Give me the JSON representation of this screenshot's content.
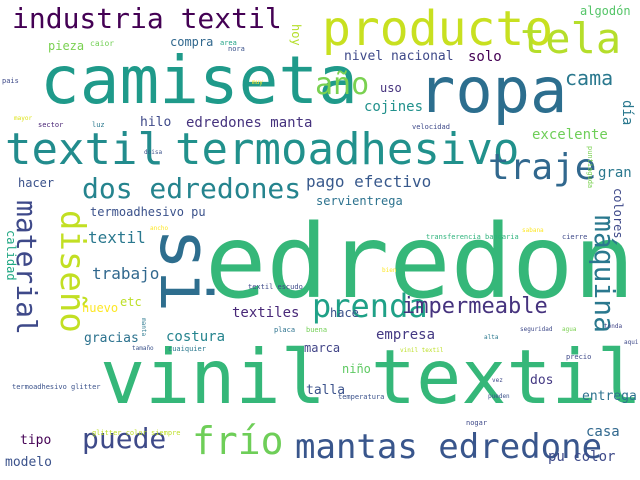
{
  "word_cloud": {
    "words": [
      {
        "text": "edredone",
        "color": "#35b779"
      },
      {
        "text": "vinil textil",
        "color": "#35b779"
      },
      {
        "text": "camiseta",
        "color": "#1f9a8a"
      },
      {
        "text": "ropa",
        "color": "#2c6e8e"
      },
      {
        "text": "producto",
        "color": "#c8e020"
      },
      {
        "text": "si",
        "color": "#2e6e8e"
      },
      {
        "text": "termoadhesivo",
        "color": "#21918c"
      },
      {
        "text": "textil",
        "color": "#228c8d"
      },
      {
        "text": "tela",
        "color": "#b5de2b"
      },
      {
        "text": "industria textil",
        "color": "#440154"
      },
      {
        "text": "mantas edredone",
        "color": "#39568c"
      },
      {
        "text": "dos edredones",
        "color": "#25848e"
      },
      {
        "text": "traje",
        "color": "#31688e"
      },
      {
        "text": "diseño",
        "color": "#c2df23"
      },
      {
        "text": "frío",
        "color": "#6ece58"
      },
      {
        "text": "prenda",
        "color": "#1fa187"
      },
      {
        "text": "puede",
        "color": "#3e4a89"
      },
      {
        "text": "material",
        "color": "#3e4989"
      },
      {
        "text": "máquina",
        "color": "#2a788e"
      },
      {
        "text": "año",
        "color": "#7ad151"
      },
      {
        "text": "impermeable",
        "color": "#46337e"
      },
      {
        "text": "cama",
        "color": "#2a788e"
      },
      {
        "text": "pago efectivo",
        "color": "#38598c"
      },
      {
        "text": "edredones manta",
        "color": "#46337e"
      },
      {
        "text": "termoadhesivo pu",
        "color": "#3b528b"
      },
      {
        "text": "textil",
        "color": "#2a788e"
      },
      {
        "text": "trabajo",
        "color": "#31688e"
      },
      {
        "text": "hacer",
        "color": "#3b528b"
      },
      {
        "text": "hilo",
        "color": "#3e4989"
      },
      {
        "text": "nivel nacional",
        "color": "#3e4989"
      },
      {
        "text": "solo",
        "color": "#440154"
      },
      {
        "text": "uso",
        "color": "#46337e"
      },
      {
        "text": "cojines",
        "color": "#21918c"
      },
      {
        "text": "excelente",
        "color": "#6ece58"
      },
      {
        "text": "gran",
        "color": "#2a788e"
      },
      {
        "text": "servientrega",
        "color": "#2c728e"
      },
      {
        "text": "día",
        "color": "#2a788e"
      },
      {
        "text": "colores",
        "color": "#3e4989"
      },
      {
        "text": "calidad",
        "color": "#22a884"
      },
      {
        "text": "textiles",
        "color": "#482878"
      },
      {
        "text": "empresa",
        "color": "#443983"
      },
      {
        "text": "costura",
        "color": "#25848e"
      },
      {
        "text": "gracias",
        "color": "#2c728e"
      },
      {
        "text": "nuevo",
        "color": "#fde725"
      },
      {
        "text": "etc",
        "color": "#bddf26"
      },
      {
        "text": "hace",
        "color": "#3b528b"
      },
      {
        "text": "marca",
        "color": "#414487"
      },
      {
        "text": "niño",
        "color": "#5ec962"
      },
      {
        "text": "talla",
        "color": "#3b528b"
      },
      {
        "text": "dos",
        "color": "#443983"
      },
      {
        "text": "entrega",
        "color": "#2c728e"
      },
      {
        "text": "casa",
        "color": "#31688e"
      },
      {
        "text": "pu color",
        "color": "#3e4a89"
      },
      {
        "text": "tipo",
        "color": "#440154"
      },
      {
        "text": "modelo",
        "color": "#3b528b"
      },
      {
        "text": "compra",
        "color": "#31688e"
      },
      {
        "text": "hoy",
        "color": "#b5de2b"
      },
      {
        "text": "pieza",
        "color": "#7ad151"
      },
      {
        "text": "algodón",
        "color": "#54c568"
      },
      {
        "text": "caior",
        "color": "#73d056"
      },
      {
        "text": "area",
        "color": "#20a386"
      },
      {
        "text": "nora",
        "color": "#3b528b"
      },
      {
        "text": "pais",
        "color": "#3e4a89"
      },
      {
        "text": "sector",
        "color": "#482475"
      },
      {
        "text": "mayor",
        "color": "#dde318"
      },
      {
        "text": "luz",
        "color": "#2a788e"
      },
      {
        "text": "doisa",
        "color": "#3b528b"
      },
      {
        "text": "velocidad",
        "color": "#3e4989"
      },
      {
        "text": "sabana",
        "color": "#fde725"
      },
      {
        "text": "transferencia bancaria",
        "color": "#2eb37c"
      },
      {
        "text": "cierre",
        "color": "#3e4989"
      },
      {
        "text": "textil escudo",
        "color": "#3e4a89"
      },
      {
        "text": "bien",
        "color": "#fde725"
      },
      {
        "text": "placa",
        "color": "#2c728e"
      },
      {
        "text": "buena",
        "color": "#73d056"
      },
      {
        "text": "tamaño",
        "color": "#3b528b"
      },
      {
        "text": "cuaiquier",
        "color": "#2a788e"
      },
      {
        "text": "termoadhesivo glitter",
        "color": "#3b528b"
      },
      {
        "text": "glitter color siempre",
        "color": "#bddf26"
      },
      {
        "text": "temperatura",
        "color": "#3b528b"
      },
      {
        "text": "nogar",
        "color": "#3e4989"
      },
      {
        "text": "pueden",
        "color": "#3b528b"
      },
      {
        "text": "precio",
        "color": "#3e4989"
      },
      {
        "text": "vinil textil",
        "color": "#bddf26"
      },
      {
        "text": "seguridad",
        "color": "#3e4989"
      },
      {
        "text": "agua",
        "color": "#7ad151"
      },
      {
        "text": "tonda",
        "color": "#414487"
      },
      {
        "text": "alta",
        "color": "#2a788e"
      },
      {
        "text": "aqui",
        "color": "#3e4989"
      },
      {
        "text": "manta",
        "color": "#2a788e"
      },
      {
        "text": "vez",
        "color": "#3e4989"
      },
      {
        "text": "ancho",
        "color": "#fde725"
      },
      {
        "text": "puntiaguda",
        "color": "#7ad151"
      },
      {
        "text": "muy",
        "color": "#fde725"
      }
    ]
  }
}
